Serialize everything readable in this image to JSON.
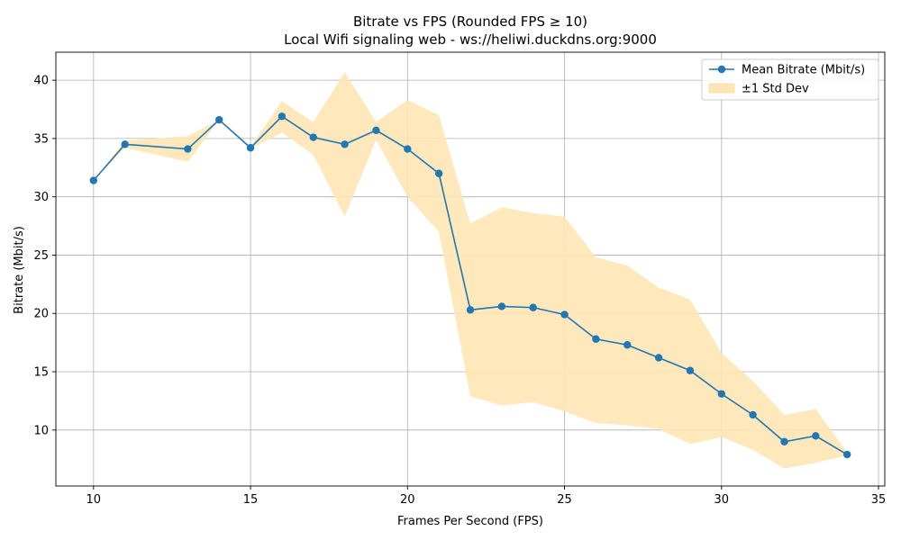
{
  "chart_data": {
    "type": "line",
    "title": "Bitrate vs FPS (Rounded FPS ≥ 10)",
    "subtitle": "Local Wifi signaling web - ws://heliwi.duckdns.org:9000",
    "xlabel": "Frames Per Second (FPS)",
    "ylabel": "Bitrate (Mbit/s)",
    "xlim": [
      8.8,
      35.2
    ],
    "ylim": [
      5.2,
      42.4
    ],
    "xticks": [
      10,
      15,
      20,
      25,
      30,
      35
    ],
    "yticks": [
      10,
      15,
      20,
      25,
      30,
      35,
      40
    ],
    "grid": true,
    "legend_position": "top-right",
    "x": [
      10,
      11,
      13,
      14,
      15,
      16,
      17,
      18,
      19,
      20,
      21,
      22,
      23,
      24,
      25,
      26,
      27,
      28,
      29,
      30,
      31,
      32,
      33,
      34
    ],
    "series": [
      {
        "name": "Mean Bitrate (Mbit/s)",
        "color": "#1f77b4",
        "values": [
          31.4,
          34.5,
          34.1,
          36.6,
          34.2,
          36.9,
          35.1,
          34.5,
          35.7,
          34.1,
          32.0,
          20.3,
          20.6,
          20.5,
          19.9,
          17.8,
          17.3,
          16.2,
          15.1,
          13.1,
          11.3,
          9.0,
          9.5,
          7.9
        ]
      }
    ],
    "band": {
      "name": "±1 Std Dev",
      "color": "#ffe5b4",
      "upper": [
        31.4,
        34.8,
        35.2,
        36.6,
        34.3,
        38.2,
        36.4,
        40.7,
        36.4,
        38.3,
        37.0,
        27.7,
        29.1,
        28.6,
        28.3,
        24.8,
        24.1,
        22.2,
        21.2,
        16.6,
        14.2,
        11.3,
        11.8,
        8.1
      ],
      "lower": [
        31.4,
        34.2,
        33.0,
        36.6,
        34.1,
        35.5,
        33.6,
        28.3,
        34.9,
        30.0,
        27.0,
        12.9,
        12.1,
        12.4,
        11.6,
        10.6,
        10.4,
        10.1,
        8.8,
        9.4,
        8.3,
        6.7,
        7.2,
        7.8
      ]
    }
  }
}
